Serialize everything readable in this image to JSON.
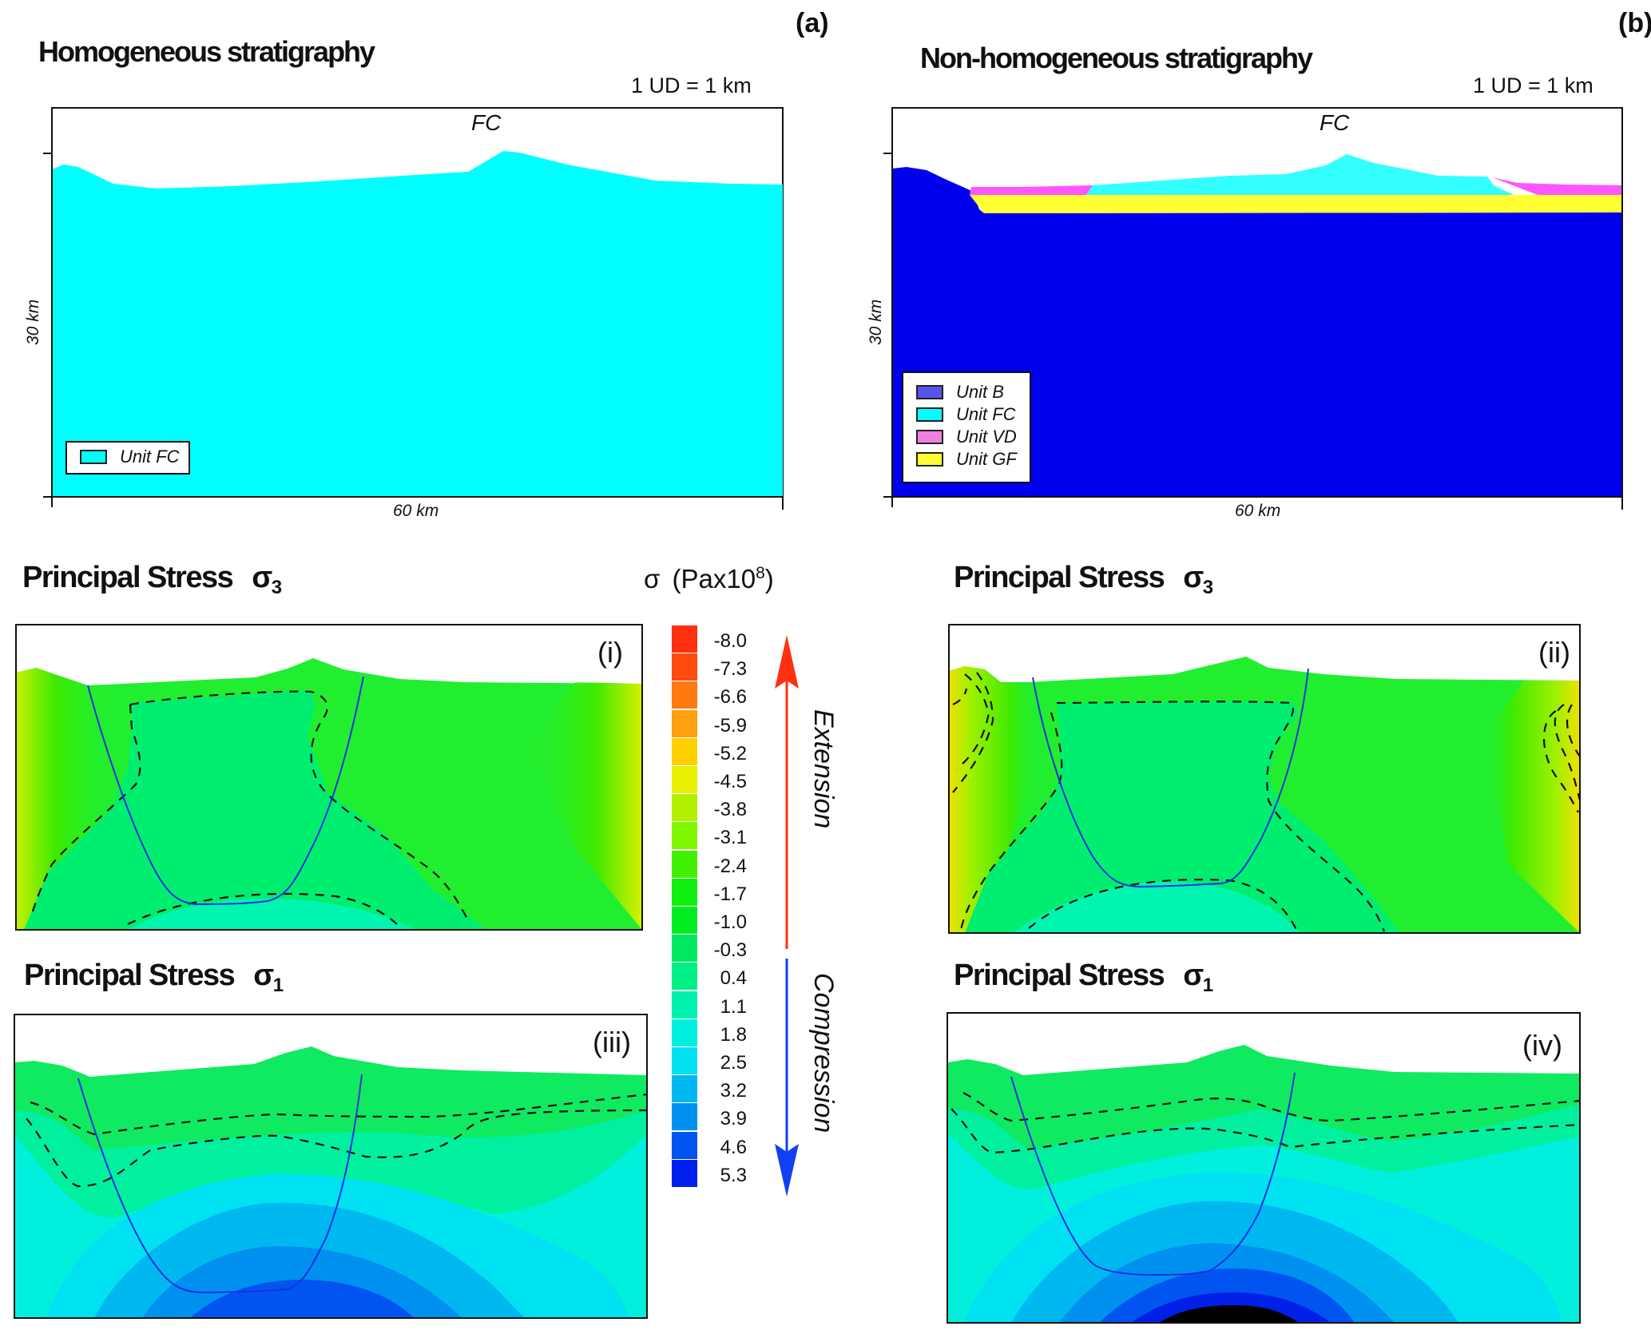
{
  "panel_a": {
    "letter": "(a)",
    "title": "Homogeneous stratigraphy",
    "scale": "1 UD = 1 km",
    "peak_label": "FC",
    "y_axis_label": "30 km",
    "x_axis_label": "60 km",
    "legend": [
      {
        "label": "Unit FC",
        "color": "#00ffff"
      }
    ]
  },
  "panel_b": {
    "letter": "(b)",
    "title": "Non-homogeneous stratigraphy",
    "scale": "1 UD = 1 km",
    "peak_label": "FC",
    "y_axis_label": "30 km",
    "x_axis_label": "60 km",
    "legend": [
      {
        "label": "Unit B",
        "color": "#5555ee"
      },
      {
        "label": "Unit FC",
        "color": "#00ffff"
      },
      {
        "label": "Unit VD",
        "color": "#f080e0"
      },
      {
        "label": "Unit GF",
        "color": "#ffff33"
      }
    ],
    "unit_colors": {
      "B": "#0000ee",
      "FC": "#33ffff",
      "VD": "#ff55ff",
      "GF": "#ffff33"
    }
  },
  "stress_panels": {
    "sigma3_title": "Principal Stress",
    "sigma3_symbol": "σ",
    "sigma3_sub": "3",
    "sigma1_title": "Principal Stress",
    "sigma1_symbol": "σ",
    "sigma1_sub": "1",
    "labels": {
      "i": "(i)",
      "ii": "(ii)",
      "iii": "(iii)",
      "iv": "(iv)"
    }
  },
  "colorbar": {
    "title_symbol": "σ",
    "title_unit": "(Pax10",
    "title_exp": "8",
    "title_close": ")",
    "levels": [
      "-8.0",
      "-7.3",
      "-6.6",
      "-5.9",
      "-5.2",
      "-4.5",
      "-3.8",
      "-3.1",
      "-2.4",
      "-1.7",
      "-1.0",
      "-0.3",
      "0.4",
      "1.1",
      "1.8",
      "2.5",
      "3.2",
      "3.9",
      "4.6",
      "5.3"
    ],
    "colors": [
      "#ff3010",
      "#ff4a10",
      "#ff7a10",
      "#ffa010",
      "#ffd000",
      "#e8f000",
      "#b0f000",
      "#80f800",
      "#40f000",
      "#10f010",
      "#00ee20",
      "#00e860",
      "#00f088",
      "#00f0b0",
      "#00f0dd",
      "#00e0f0",
      "#00b8f0",
      "#0090f0",
      "#0055f0",
      "#0020ee"
    ],
    "extension_label": "Extension",
    "compression_label": "Compression",
    "extension_color": "#ff3010",
    "compression_color": "#1040f0"
  }
}
